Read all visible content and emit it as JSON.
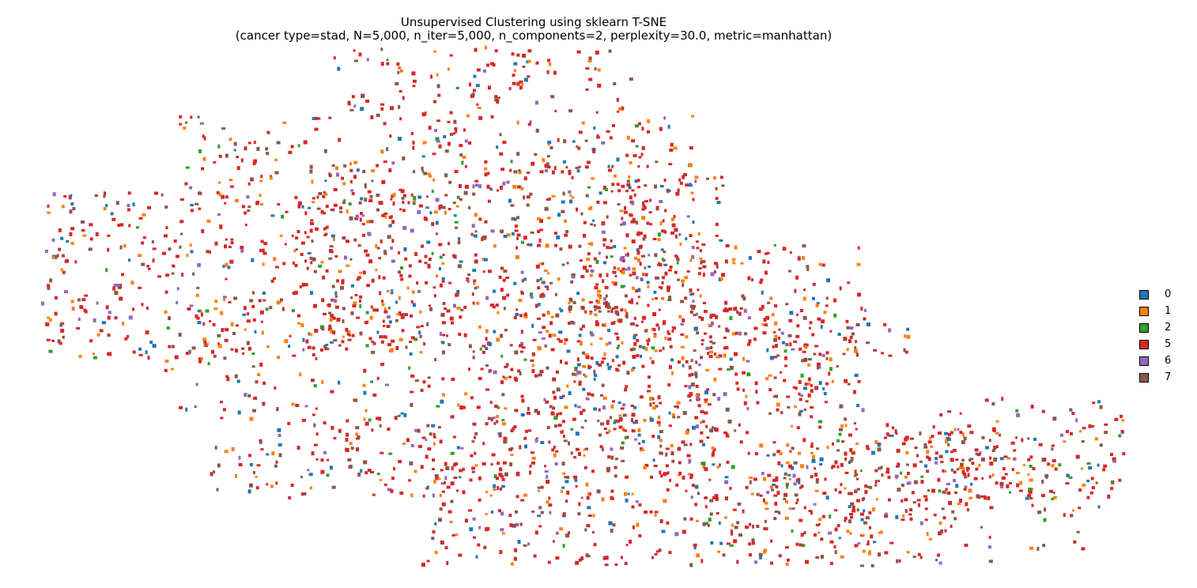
{
  "chart_data": {
    "type": "scatter",
    "title": "Unsupervised Clustering using sklearn T-SNE",
    "subtitle": "(cancer type=stad, N=5,000, n_iter=5,000, n_components=2, perplexity=30.0, metric=manhattan)",
    "axes_visible": false,
    "grid": false,
    "legend_position": "center-right",
    "xlim": [
      0,
      100
    ],
    "ylim": [
      0,
      100
    ],
    "series": [
      {
        "name": "0",
        "color": "#1f77b4",
        "weight": 9
      },
      {
        "name": "1",
        "color": "#ff7f0e",
        "weight": 14
      },
      {
        "name": "2",
        "color": "#2ca02c",
        "weight": 3
      },
      {
        "name": "5",
        "color": "#d62728",
        "weight": 52
      },
      {
        "name": "6",
        "color": "#9467bd",
        "weight": 6
      },
      {
        "name": "7",
        "color": "#8c564b",
        "weight": 16
      }
    ],
    "point_count_rendered": 3400,
    "regions": [
      {
        "x": [
          28.5,
          55.5
        ],
        "y": [
          87,
          100
        ],
        "density": 1.0
      },
      {
        "x": [
          14.5,
          61
        ],
        "y": [
          70,
          87
        ],
        "density": 1.0
      },
      {
        "x": [
          2,
          40
        ],
        "y": [
          40,
          72
        ],
        "density": 1.2
      },
      {
        "x": [
          13,
          38
        ],
        "y": [
          30,
          52
        ],
        "density": 0.9
      },
      {
        "x": [
          26,
          62
        ],
        "y": [
          48,
          78
        ],
        "density": 1.0
      },
      {
        "x": [
          38,
          63
        ],
        "y": [
          28,
          55
        ],
        "density": 1.0
      },
      {
        "x": [
          48,
          66
        ],
        "y": [
          25,
          50
        ],
        "density": 1.0
      },
      {
        "x": [
          50,
          64
        ],
        "y": [
          55,
          75
        ],
        "density": 0.8
      },
      {
        "x": [
          41,
          57
        ],
        "y": [
          36,
          70
        ],
        "density": 1.0
      },
      {
        "x": [
          53,
          68
        ],
        "y": [
          42,
          62
        ],
        "density": 0.9
      },
      {
        "x": [
          67,
          76
        ],
        "y": [
          14,
          62
        ],
        "density": 1.0
      },
      {
        "x": [
          60,
          77
        ],
        "y": [
          30,
          50
        ],
        "density": 1.0
      },
      {
        "x": [
          66,
          81
        ],
        "y": [
          40,
          47
        ],
        "density": 0.6
      },
      {
        "x": [
          83,
          100
        ],
        "y": [
          13,
          33
        ],
        "density": 0.8
      },
      {
        "x": [
          17,
          62
        ],
        "y": [
          13,
          31
        ],
        "density": 1.0
      },
      {
        "x": [
          36,
          88
        ],
        "y": [
          0,
          27
        ],
        "density": 1.3
      },
      {
        "x": [
          60,
          77
        ],
        "y": [
          4,
          18
        ],
        "density": 0.9
      },
      {
        "x": [
          77,
          93
        ],
        "y": [
          10,
          26
        ],
        "density": 0.8
      },
      {
        "x": [
          77,
          100
        ],
        "y": [
          17,
          28
        ],
        "density": 0.6
      },
      {
        "x": [
          89,
          100
        ],
        "y": [
          3,
          20
        ],
        "density": 0.6
      }
    ]
  }
}
